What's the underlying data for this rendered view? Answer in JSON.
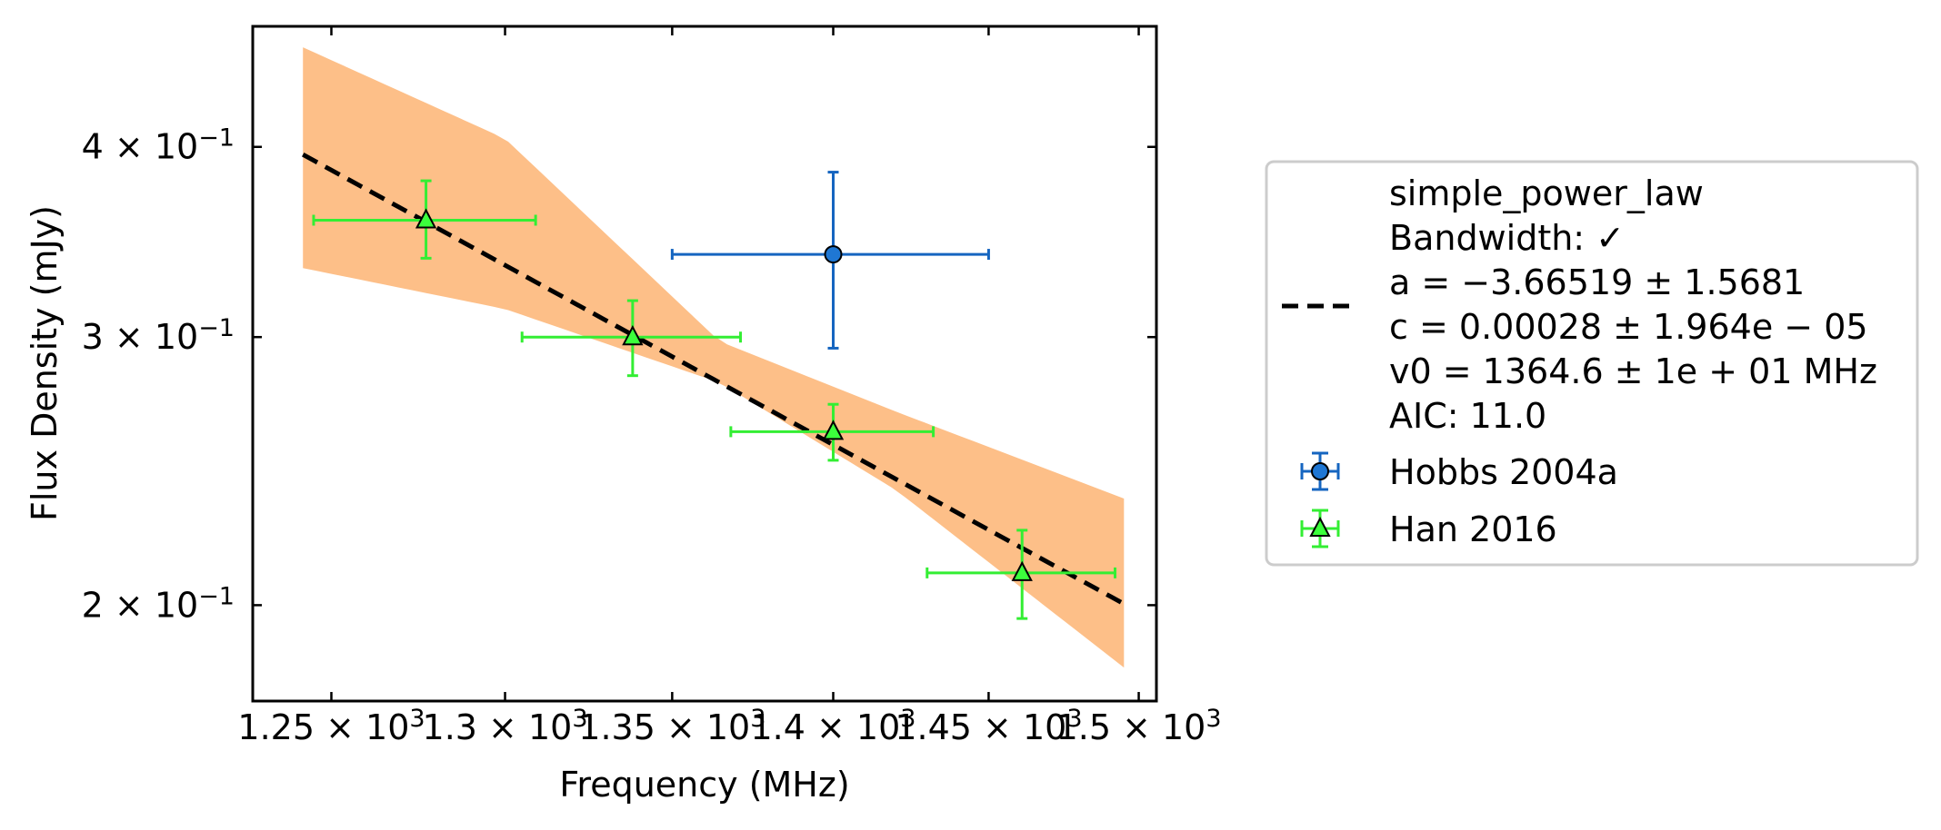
{
  "chart_data": {
    "type": "scatter",
    "xlabel": "Frequency (MHz)",
    "ylabel": "Flux Density (mJy)",
    "x_scale": "log",
    "y_scale": "log",
    "xlim": [
      1228,
      1506
    ],
    "ylim": [
      0.173,
      0.48
    ],
    "x_ticks": [
      {
        "value": 1250,
        "mantissa": "1.25",
        "exponent": "3"
      },
      {
        "value": 1300,
        "mantissa": "1.3",
        "exponent": "3"
      },
      {
        "value": 1350,
        "mantissa": "1.35",
        "exponent": "3"
      },
      {
        "value": 1400,
        "mantissa": "1.4",
        "exponent": "3"
      },
      {
        "value": 1450,
        "mantissa": "1.45",
        "exponent": "3"
      },
      {
        "value": 1500,
        "mantissa": "1.5",
        "exponent": "3"
      }
    ],
    "y_ticks": [
      {
        "value": 0.2,
        "mantissa": "2",
        "exponent": "−1"
      },
      {
        "value": 0.3,
        "mantissa": "3",
        "exponent": "−1"
      },
      {
        "value": 0.4,
        "mantissa": "4",
        "exponent": "−1"
      }
    ],
    "grid": false,
    "legend_position": "right",
    "fit": {
      "model": "simple_power_law",
      "a": -3.66519,
      "c": 0.00028,
      "v0": 1364.6,
      "x_range": [
        1242,
        1495
      ],
      "band_lower": [
        {
          "x": 1242,
          "y": 0.333
        },
        {
          "x": 1300,
          "y": 0.313
        },
        {
          "x": 1364.6,
          "y": 0.28
        },
        {
          "x": 1420,
          "y": 0.238
        },
        {
          "x": 1495,
          "y": 0.182
        }
      ],
      "band_upper": [
        {
          "x": 1242,
          "y": 0.465
        },
        {
          "x": 1300,
          "y": 0.405
        },
        {
          "x": 1364.6,
          "y": 0.298
        },
        {
          "x": 1420,
          "y": 0.268
        },
        {
          "x": 1495,
          "y": 0.235
        }
      ],
      "band_color": "#fdbf88",
      "line_color": "#000000"
    },
    "series": [
      {
        "name": "Hobbs 2004a",
        "marker": "circle",
        "color": "#1f77d4",
        "ecolor": "#1565c0",
        "points": [
          {
            "x": 1400,
            "y": 0.34,
            "xerr": 50,
            "yerr_low": 0.045,
            "yerr_high": 0.045
          }
        ]
      },
      {
        "name": "Han 2016",
        "marker": "triangle",
        "color": "#3cff3c",
        "ecolor": "#33ee33",
        "points": [
          {
            "x": 1277,
            "y": 0.358,
            "xerr": 32,
            "yerr_low": 0.02,
            "yerr_high": 0.022
          },
          {
            "x": 1338,
            "y": 0.3,
            "xerr": 33,
            "yerr_low": 0.017,
            "yerr_high": 0.017
          },
          {
            "x": 1400,
            "y": 0.26,
            "xerr": 32,
            "yerr_low": 0.011,
            "yerr_high": 0.011
          },
          {
            "x": 1461,
            "y": 0.21,
            "xerr": 31,
            "yerr_low": 0.014,
            "yerr_high": 0.014
          }
        ]
      }
    ],
    "legend": {
      "fit_lines": [
        "simple_power_law",
        "Bandwidth: ✓",
        "a = −3.66519 ± 1.5681",
        "c = 0.00028 ± 1.964e − 05",
        "v0 = 1364.6 ± 1e + 01 MHz",
        "AIC: 11.0"
      ],
      "entries": [
        "Hobbs 2004a",
        "Han 2016"
      ]
    }
  }
}
